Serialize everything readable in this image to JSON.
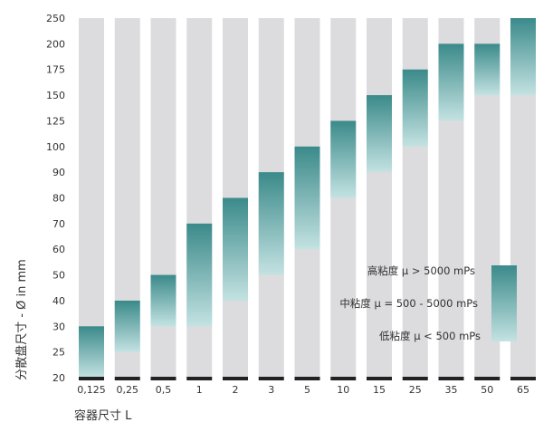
{
  "chart_data": {
    "type": "bar",
    "style": "floating-range",
    "ylabel": "分散盘尺寸 - Ø in mm",
    "xlabel": "容器尺寸 L",
    "y_ticks": [
      20,
      25,
      30,
      40,
      50,
      60,
      70,
      80,
      90,
      100,
      125,
      150,
      175,
      200,
      250
    ],
    "ylim": [
      20,
      250
    ],
    "y_scale": "categorical-tick-spacing",
    "categories": [
      "0,125",
      "0,25",
      "0,5",
      "1",
      "2",
      "3",
      "5",
      "10",
      "15",
      "25",
      "35",
      "50",
      "65"
    ],
    "ranges": [
      {
        "low": 20,
        "high": 30
      },
      {
        "low": 25,
        "high": 40
      },
      {
        "low": 30,
        "high": 50
      },
      {
        "low": 30,
        "high": 70
      },
      {
        "low": 40,
        "high": 80
      },
      {
        "low": 50,
        "high": 90
      },
      {
        "low": 60,
        "high": 100
      },
      {
        "low": 80,
        "high": 125
      },
      {
        "low": 90,
        "high": 150
      },
      {
        "low": 100,
        "high": 175
      },
      {
        "low": 125,
        "high": 200
      },
      {
        "low": 150,
        "high": 200
      },
      {
        "low": 150,
        "high": 250
      }
    ],
    "legend": {
      "entries": [
        "高粘度 μ > 5000 mPs",
        "中粘度 μ = 500 - 5000 mPs",
        "低粘度 μ < 500 mPs"
      ],
      "placement": "right"
    },
    "colors": {
      "column_bg": "#dcdcde",
      "gradient_top": "#3b8a8a",
      "gradient_bottom": "#c4e2e2",
      "baseline": "#222222"
    },
    "grid": false
  }
}
